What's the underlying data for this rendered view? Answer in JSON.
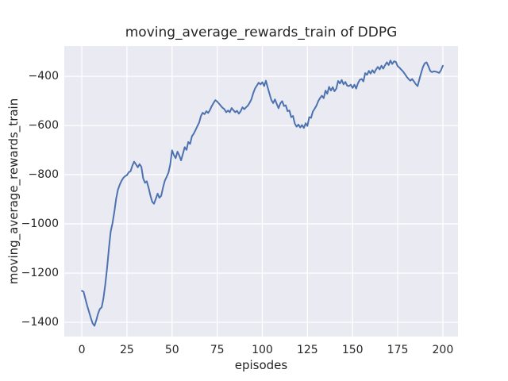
{
  "chart_data": {
    "type": "line",
    "title": "moving_average_rewards_train of DDPG",
    "xlabel": "episodes",
    "ylabel": "moving_average_rewards_train",
    "legend": "none",
    "grid": true,
    "style": "seaborn-darkgrid",
    "colors": {
      "line": "#4C72B0",
      "plot_background": "#EAEAF2",
      "figure_background": "#FFFFFF",
      "gridline": "#FFFFFF",
      "text": "#262626"
    },
    "xlim": [
      -9.7,
      208.4
    ],
    "ylim": [
      -1458,
      -277
    ],
    "x_ticks": [
      {
        "value": 0,
        "label": "0"
      },
      {
        "value": 25,
        "label": "25"
      },
      {
        "value": 50,
        "label": "50"
      },
      {
        "value": 75,
        "label": "75"
      },
      {
        "value": 100,
        "label": "100"
      },
      {
        "value": 125,
        "label": "125"
      },
      {
        "value": 150,
        "label": "150"
      },
      {
        "value": 175,
        "label": "175"
      },
      {
        "value": 200,
        "label": "200"
      }
    ],
    "y_ticks": [
      {
        "value": -400,
        "label": "−400"
      },
      {
        "value": -600,
        "label": "−600"
      },
      {
        "value": -800,
        "label": "−800"
      },
      {
        "value": -1000,
        "label": "−1000"
      },
      {
        "value": -1200,
        "label": "−1200"
      },
      {
        "value": -1400,
        "label": "−1400"
      }
    ],
    "series": [
      {
        "name": "moving_average_rewards_train",
        "x_start": 0,
        "x_step": 1,
        "values": [
          -1272,
          -1276,
          -1305,
          -1333,
          -1358,
          -1382,
          -1404,
          -1414,
          -1392,
          -1365,
          -1346,
          -1339,
          -1303,
          -1247,
          -1180,
          -1100,
          -1032,
          -998,
          -952,
          -898,
          -862,
          -841,
          -825,
          -813,
          -806,
          -802,
          -790,
          -786,
          -764,
          -747,
          -758,
          -770,
          -757,
          -768,
          -815,
          -833,
          -827,
          -853,
          -885,
          -910,
          -918,
          -898,
          -877,
          -894,
          -886,
          -852,
          -824,
          -809,
          -792,
          -758,
          -701,
          -720,
          -733,
          -706,
          -722,
          -742,
          -716,
          -688,
          -699,
          -667,
          -675,
          -644,
          -633,
          -619,
          -603,
          -588,
          -561,
          -548,
          -554,
          -542,
          -549,
          -537,
          -521,
          -508,
          -497,
          -503,
          -511,
          -520,
          -528,
          -534,
          -546,
          -539,
          -546,
          -529,
          -538,
          -546,
          -540,
          -552,
          -542,
          -526,
          -534,
          -526,
          -519,
          -507,
          -493,
          -468,
          -449,
          -437,
          -426,
          -433,
          -424,
          -440,
          -418,
          -446,
          -472,
          -496,
          -509,
          -494,
          -513,
          -530,
          -510,
          -501,
          -521,
          -518,
          -542,
          -539,
          -566,
          -561,
          -592,
          -605,
          -596,
          -608,
          -598,
          -610,
          -591,
          -602,
          -566,
          -569,
          -543,
          -532,
          -519,
          -501,
          -488,
          -479,
          -489,
          -458,
          -471,
          -443,
          -458,
          -444,
          -461,
          -450,
          -419,
          -429,
          -415,
          -433,
          -423,
          -438,
          -440,
          -434,
          -447,
          -434,
          -450,
          -428,
          -414,
          -411,
          -421,
          -387,
          -394,
          -378,
          -389,
          -375,
          -386,
          -372,
          -362,
          -372,
          -357,
          -369,
          -355,
          -343,
          -354,
          -336,
          -350,
          -339,
          -342,
          -359,
          -365,
          -373,
          -381,
          -391,
          -402,
          -411,
          -418,
          -411,
          -421,
          -432,
          -440,
          -413,
          -386,
          -362,
          -347,
          -343,
          -359,
          -378,
          -383,
          -380,
          -381,
          -383,
          -386,
          -375,
          -357
        ]
      }
    ]
  }
}
